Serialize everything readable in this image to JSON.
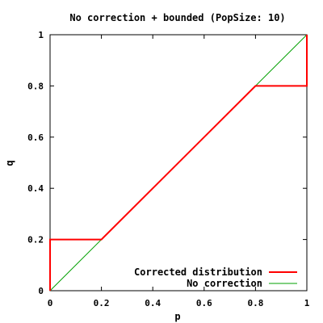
{
  "chart_data": {
    "type": "line",
    "title": "No correction + bounded (PopSize: 10)",
    "xlabel": "p",
    "ylabel": "q",
    "xlim": [
      0,
      1
    ],
    "ylim": [
      0,
      1
    ],
    "x_ticks": [
      0,
      0.2,
      0.4,
      0.6,
      0.8,
      1
    ],
    "y_ticks": [
      0,
      0.2,
      0.4,
      0.6,
      0.8,
      1
    ],
    "x_tick_labels": [
      "0",
      "0.2",
      "0.4",
      "0.6",
      "0.8",
      "1"
    ],
    "y_tick_labels": [
      "0",
      "0.2",
      "0.4",
      "0.6",
      "0.8",
      "1"
    ],
    "grid": false,
    "legend_position": "bottom-right",
    "series": [
      {
        "name": "Corrected distribution",
        "color": "#ff0000",
        "x": [
          0,
          0,
          0.2,
          0.8,
          1,
          1
        ],
        "y": [
          0,
          0.2,
          0.2,
          0.8,
          0.8,
          1
        ]
      },
      {
        "name": "No correction",
        "color": "#00a000",
        "x": [
          0,
          1
        ],
        "y": [
          0,
          1
        ]
      }
    ]
  }
}
